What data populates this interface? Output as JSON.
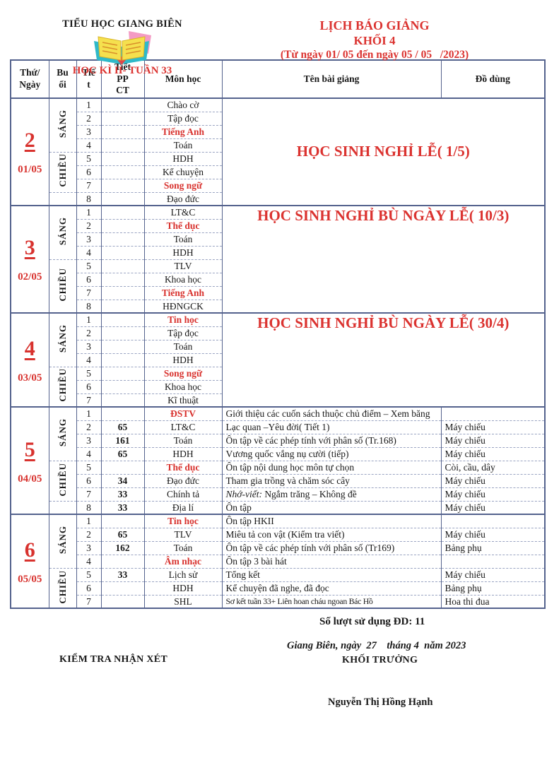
{
  "colors": {
    "accent_red": "#DB3330",
    "table_border": "#54628D",
    "dashed_border": "#9AA4C2"
  },
  "header": {
    "school": "TIỂU HỌC GIANG BIÊN",
    "week": "HỌC KÌ II- TUẦN 33",
    "title_line1": "LỊCH BÁO GIẢNG",
    "title_line2": "KHỐI 4",
    "title_line3": "(Từ ngày 01/ 05 đến ngày 05 / 05   /2023)"
  },
  "table": {
    "columns": [
      "Thứ/\nNgày",
      "Bu\nổi",
      "Tiế\nt",
      "Tiết\nPP\nCT",
      "Môn học",
      "Tên bài giảng",
      "Đồ dùng"
    ],
    "days": [
      {
        "number": "2",
        "date": "01/05",
        "note": "HỌC SINH NGHỈ LỄ( 1/5)",
        "note_pos": "middle",
        "sessions": [
          {
            "label": "SÁNG",
            "rows": 4
          },
          {
            "label": "CHIỀU",
            "rows": 3
          },
          {
            "label": "",
            "rows": 1
          }
        ],
        "periods": [
          {
            "tiet": "1",
            "ppct": "",
            "subject": "Chào cờ",
            "subject_red": false
          },
          {
            "tiet": "2",
            "ppct": "",
            "subject": "Tập đọc",
            "subject_red": false
          },
          {
            "tiet": "3",
            "ppct": "",
            "subject": "Tiếng Anh",
            "subject_red": true
          },
          {
            "tiet": "4",
            "ppct": "",
            "subject": "Toán",
            "subject_red": false
          },
          {
            "tiet": "5",
            "ppct": "",
            "subject": "HDH",
            "subject_red": false
          },
          {
            "tiet": "6",
            "ppct": "",
            "subject": "Kể chuyện",
            "subject_red": false
          },
          {
            "tiet": "7",
            "ppct": "",
            "subject": "Song ngữ",
            "subject_red": true
          },
          {
            "tiet": "8",
            "ppct": "",
            "subject": "Đạo đức",
            "subject_red": false
          }
        ]
      },
      {
        "number": "3",
        "date": "02/05",
        "note": "HỌC SINH NGHỈ BÙ NGÀY LỄ( 10/3)",
        "note_pos": "top",
        "sessions": [
          {
            "label": "SÁNG",
            "rows": 4
          },
          {
            "label": "CHIỀU",
            "rows": 4
          }
        ],
        "periods": [
          {
            "tiet": "1",
            "ppct": "",
            "subject": "LT&C",
            "subject_red": false
          },
          {
            "tiet": "2",
            "ppct": "",
            "subject": "Thể dục",
            "subject_red": true
          },
          {
            "tiet": "3",
            "ppct": "",
            "subject": "Toán",
            "subject_red": false
          },
          {
            "tiet": "4",
            "ppct": "",
            "subject": "HDH",
            "subject_red": false
          },
          {
            "tiet": "5",
            "ppct": "",
            "subject": "TLV",
            "subject_red": false
          },
          {
            "tiet": "6",
            "ppct": "",
            "subject": "Khoa học",
            "subject_red": false
          },
          {
            "tiet": "7",
            "ppct": "",
            "subject": "Tiếng Anh",
            "subject_red": true
          },
          {
            "tiet": "8",
            "ppct": "",
            "subject": "HĐNGCK",
            "subject_red": false
          }
        ]
      },
      {
        "number": "4",
        "date": "03/05",
        "note": "HỌC SINH NGHỈ BÙ NGÀY LỄ( 30/4)",
        "note_pos": "top",
        "sessions": [
          {
            "label": "SÁNG",
            "rows": 4
          },
          {
            "label": "CHIỀU",
            "rows": 3
          }
        ],
        "periods": [
          {
            "tiet": "1",
            "ppct": "",
            "subject": "Tin học",
            "subject_red": true
          },
          {
            "tiet": "2",
            "ppct": "",
            "subject": "Tập đọc",
            "subject_red": false
          },
          {
            "tiet": "3",
            "ppct": "",
            "subject": "Toán",
            "subject_red": false
          },
          {
            "tiet": "4",
            "ppct": "",
            "subject": "HDH",
            "subject_red": false
          },
          {
            "tiet": "5",
            "ppct": "",
            "subject": "Song ngữ",
            "subject_red": true
          },
          {
            "tiet": "6",
            "ppct": "",
            "subject": "Khoa học",
            "subject_red": false
          },
          {
            "tiet": "7",
            "ppct": "",
            "subject": "Kĩ thuật",
            "subject_red": false
          }
        ]
      },
      {
        "number": "5",
        "date": "04/05",
        "note": null,
        "sessions": [
          {
            "label": "SÁNG",
            "rows": 4
          },
          {
            "label": "CHIỀU",
            "rows": 3
          },
          {
            "label": "",
            "rows": 1
          }
        ],
        "periods": [
          {
            "tiet": "1",
            "ppct": "",
            "subject": "ĐSTV",
            "subject_red": true,
            "lesson": "Giới thiệu các cuốn sách thuộc chủ điểm – Xem băng",
            "tools": ""
          },
          {
            "tiet": "2",
            "ppct": "65",
            "subject": "LT&C",
            "subject_red": false,
            "lesson": "Lạc quan –Yêu đời( Tiết 1)",
            "tools": "Máy chiếu"
          },
          {
            "tiet": "3",
            "ppct": "161",
            "subject": "Toán",
            "subject_red": false,
            "lesson": "Ôn tập về các phép tính với phân số (Tr.168)",
            "tools": "Máy chiếu"
          },
          {
            "tiet": "4",
            "ppct": "65",
            "subject": "HDH",
            "subject_red": false,
            "lesson": "Vương quốc vắng nụ cười (tiếp)",
            "tools": "Máy chiếu"
          },
          {
            "tiet": "5",
            "ppct": "",
            "subject": "Thể dục",
            "subject_red": true,
            "lesson": "Ôn tập nội dung học môn tự chọn",
            "tools": "Còi, cầu, dây"
          },
          {
            "tiet": "6",
            "ppct": "34",
            "subject": "Đạo đức",
            "subject_red": false,
            "lesson": " Tham gia trồng và chăm sóc cây",
            "tools": "Máy chiếu"
          },
          {
            "tiet": "7",
            "ppct": "33",
            "subject": "Chính tả",
            "subject_red": false,
            "lesson_italic_prefix": "Nhớ-viết:",
            "lesson": " Ngắm trăng – Không đề",
            "tools": "Máy chiếu"
          },
          {
            "tiet": "8",
            "ppct": "33",
            "subject": "Địa lí",
            "subject_red": false,
            "lesson": "Ôn tập",
            "tools": "Máy chiếu"
          }
        ]
      },
      {
        "number": "6",
        "date": "05/05",
        "note": null,
        "sessions": [
          {
            "label": "SÁNG",
            "rows": 4
          },
          {
            "label": "CHIỀU",
            "rows": 3
          }
        ],
        "periods": [
          {
            "tiet": "1",
            "ppct": "",
            "subject": "Tin học",
            "subject_red": true,
            "lesson": "Ôn tập HKII",
            "tools": ""
          },
          {
            "tiet": "2",
            "ppct": "65",
            "subject": "TLV",
            "subject_red": false,
            "lesson": "Miêu tả con vật (Kiểm tra viết)",
            "tools": "Máy chiếu"
          },
          {
            "tiet": "3",
            "ppct": "162",
            "subject": "Toán",
            "subject_red": false,
            "lesson": "Ôn tập về các phép tính với phân số (Tr169)",
            "tools": "Bảng phụ"
          },
          {
            "tiet": "4",
            "ppct": "",
            "subject": "Âm nhạc",
            "subject_red": true,
            "lesson": "Ôn tập 3 bài hát",
            "tools": ""
          },
          {
            "tiet": "5",
            "ppct": "33",
            "subject": "Lịch sử",
            "subject_red": false,
            "lesson": "Tổng kết",
            "tools": "Máy chiếu"
          },
          {
            "tiet": "6",
            "ppct": "",
            "subject": "HDH",
            "subject_red": false,
            "lesson": "Kể chuyện đã nghe, đã đọc",
            "tools": "Bảng phụ"
          },
          {
            "tiet": "7",
            "ppct": "",
            "subject": "SHL",
            "subject_red": false,
            "lesson": "Sơ kết tuần 33+ Liên hoan cháu ngoan Bác Hồ",
            "tools": "Hoa thi đua",
            "narrow": true
          }
        ]
      }
    ]
  },
  "footer": {
    "usage": "Số lượt sử dụng ĐD: 11",
    "place_date": "Giang Biên, ngày  27    tháng 4  năm 2023",
    "review_title": "KIỂM TRA NHẬN XÉT",
    "leader_title": "KHỐI TRƯỞNG",
    "signature": "Nguyễn Thị Hồng Hạnh"
  }
}
